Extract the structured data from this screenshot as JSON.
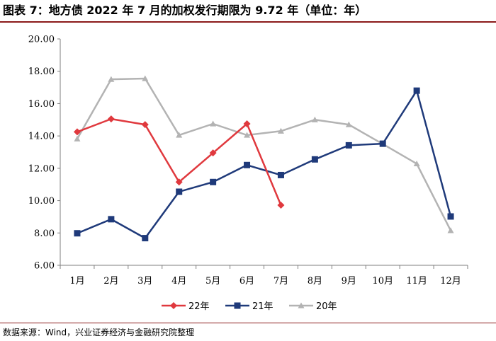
{
  "title": "图表 7：地方债 2022 年 7 月的加权发行期限为 9.72 年（单位：年）",
  "source": "数据来源：Wind，兴业证券经济与金融研究院整理",
  "chart_data": {
    "type": "line",
    "title": "图表 7：地方债 2022 年 7 月的加权发行期限为 9.72 年（单位：年）",
    "xlabel": "",
    "ylabel": "",
    "categories": [
      "1月",
      "2月",
      "3月",
      "4月",
      "5月",
      "6月",
      "7月",
      "8月",
      "9月",
      "10月",
      "11月",
      "12月"
    ],
    "ylim": [
      6,
      20
    ],
    "yticks": [
      "6.00",
      "8.00",
      "10.00",
      "12.00",
      "14.00",
      "16.00",
      "18.00",
      "20.00"
    ],
    "grid": false,
    "legend_position": "bottom",
    "series": [
      {
        "name": "22年",
        "color": "#e0393e",
        "marker": "diamond",
        "values": [
          14.25,
          15.05,
          14.7,
          11.15,
          12.95,
          14.75,
          9.72,
          null,
          null,
          null,
          null,
          null
        ]
      },
      {
        "name": "21年",
        "color": "#1f3a7a",
        "marker": "square",
        "values": [
          7.98,
          8.85,
          7.68,
          10.55,
          11.15,
          12.2,
          11.58,
          12.55,
          13.42,
          13.52,
          16.8,
          9.02
        ]
      },
      {
        "name": "20年",
        "color": "#b3b3b3",
        "marker": "triangle",
        "values": [
          13.82,
          17.5,
          17.55,
          14.05,
          14.75,
          14.05,
          14.3,
          15.0,
          14.7,
          13.5,
          12.28,
          8.15
        ]
      }
    ]
  }
}
